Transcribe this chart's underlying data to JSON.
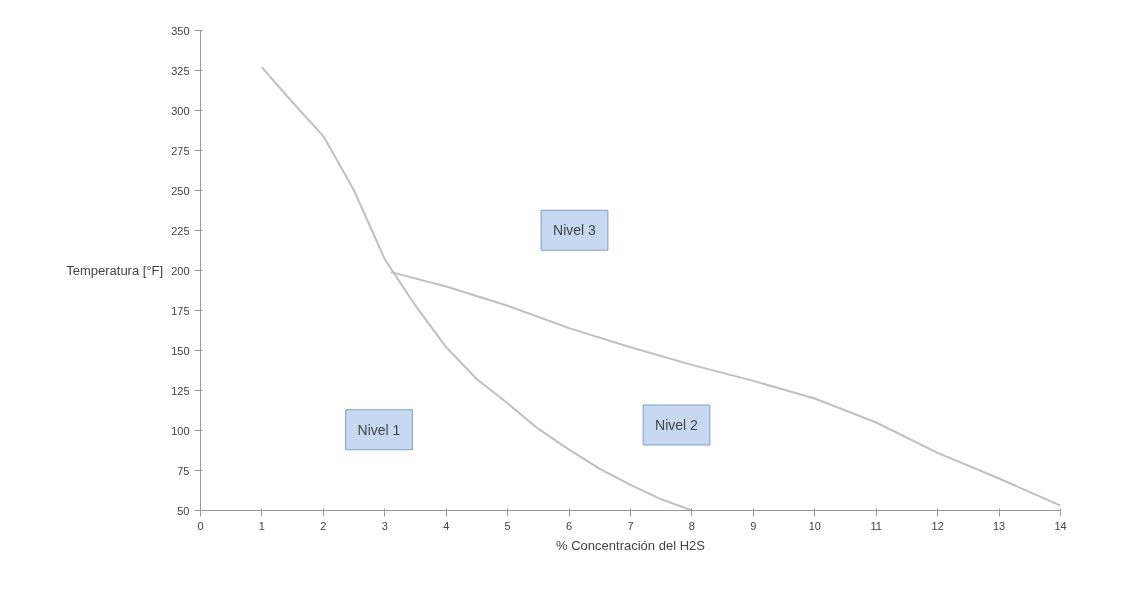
{
  "chart_data": {
    "type": "line",
    "xlabel": "% Concentración del H2S",
    "ylabel": "Temperatura [°F]",
    "series": [
      {
        "color": "#c0c0c0",
        "x": [
          1,
          1.5,
          2,
          2.5,
          3,
          3.5,
          4,
          4.5,
          5,
          5.5,
          6,
          6.5,
          7,
          7.5,
          8
        ],
        "values": [
          327,
          305,
          284,
          250,
          207,
          178,
          152,
          132,
          117,
          101,
          88,
          76,
          66,
          57,
          50
        ]
      },
      {
        "color": "#c0c0c0",
        "x": [
          3.1,
          4,
          5,
          6,
          7,
          8,
          9,
          10,
          11,
          12,
          13,
          14
        ],
        "values": [
          199,
          190,
          178,
          164,
          152,
          141,
          131,
          120,
          105,
          86,
          70,
          53
        ]
      }
    ],
    "annotations": [
      "Nivel 1",
      "Nivel 2",
      "Nivel 3"
    ],
    "xlim": [
      0,
      14
    ],
    "xticks": [
      0,
      1,
      2,
      3,
      4,
      5,
      6,
      7,
      8,
      9,
      10,
      11,
      12,
      13,
      14
    ],
    "ylim": [
      50,
      350
    ],
    "yticks": [
      50,
      75,
      100,
      125,
      150,
      175,
      200,
      225,
      250,
      275,
      300,
      325,
      350
    ],
    "grid": false,
    "marker": "none",
    "line_style": "solid"
  }
}
